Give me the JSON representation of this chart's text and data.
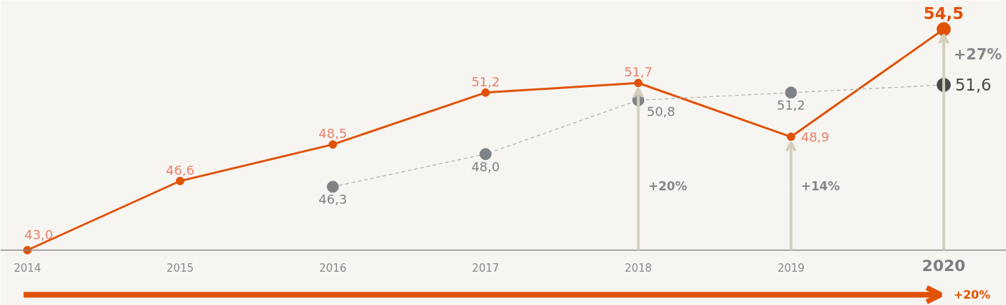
{
  "chart_data": {
    "type": "line",
    "categories": [
      "2014",
      "2015",
      "2016",
      "2017",
      "2018",
      "2019",
      "2020"
    ],
    "ylim": [
      43.0,
      56.0
    ],
    "tick_labels": "x",
    "marker": "circle",
    "line_style": "solid",
    "series": [
      {
        "color": "#e05206",
        "values": [
          43.0,
          46.6,
          48.5,
          51.2,
          51.7,
          48.9,
          54.5
        ],
        "value_labels": [
          "43,0",
          "46,6",
          "48,5",
          "51,2",
          "51,7",
          "48,9",
          "54,5"
        ]
      },
      {
        "color": "#7f8284",
        "colors": [
          null,
          null,
          "#7f8284",
          "#7f8284",
          "#7f8284",
          "#7f8284",
          "#4a4a4a"
        ],
        "line_style": "dashed",
        "values": [
          null,
          null,
          46.3,
          48.0,
          50.8,
          51.2,
          51.6
        ],
        "value_labels": [
          null,
          null,
          "46,3",
          "48,0",
          "50,8",
          "51,2",
          "51,6"
        ]
      }
    ],
    "annotations": [
      {
        "text": "+20%",
        "x": "2018",
        "y": 51.7
      },
      {
        "text": "+14%",
        "x": "2019",
        "y": 48.9
      },
      {
        "text": "+27%",
        "x": "2020",
        "y": 54.5
      },
      "+20%"
    ]
  }
}
